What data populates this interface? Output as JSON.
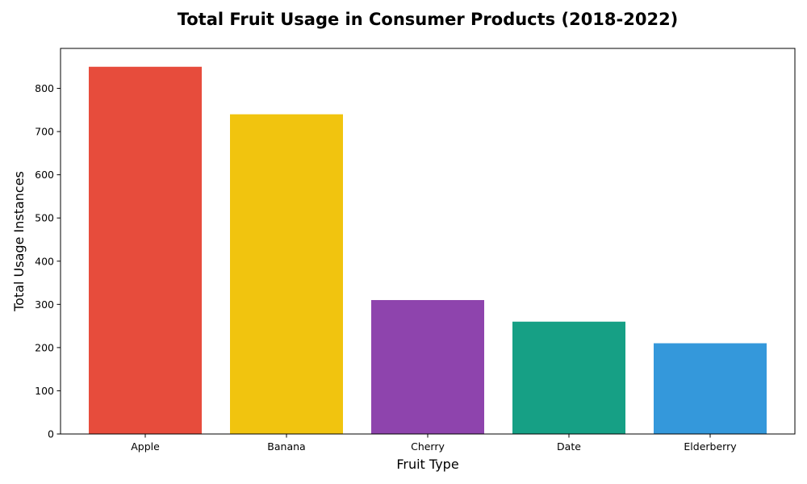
{
  "chart_data": {
    "type": "bar",
    "title": "Total Fruit Usage in Consumer Products (2018-2022)",
    "xlabel": "Fruit Type",
    "ylabel": "Total Usage Instances",
    "categories": [
      "Apple",
      "Banana",
      "Cherry",
      "Date",
      "Elderberry"
    ],
    "values": [
      850,
      740,
      310,
      260,
      210
    ],
    "colors": [
      "#e74c3c",
      "#f1c40f",
      "#8e44ad",
      "#16a085",
      "#3498db"
    ],
    "ylim": [
      0,
      892.5
    ],
    "yticks": [
      0,
      100,
      200,
      300,
      400,
      500,
      600,
      700,
      800
    ],
    "grid": false,
    "legend": "none"
  }
}
